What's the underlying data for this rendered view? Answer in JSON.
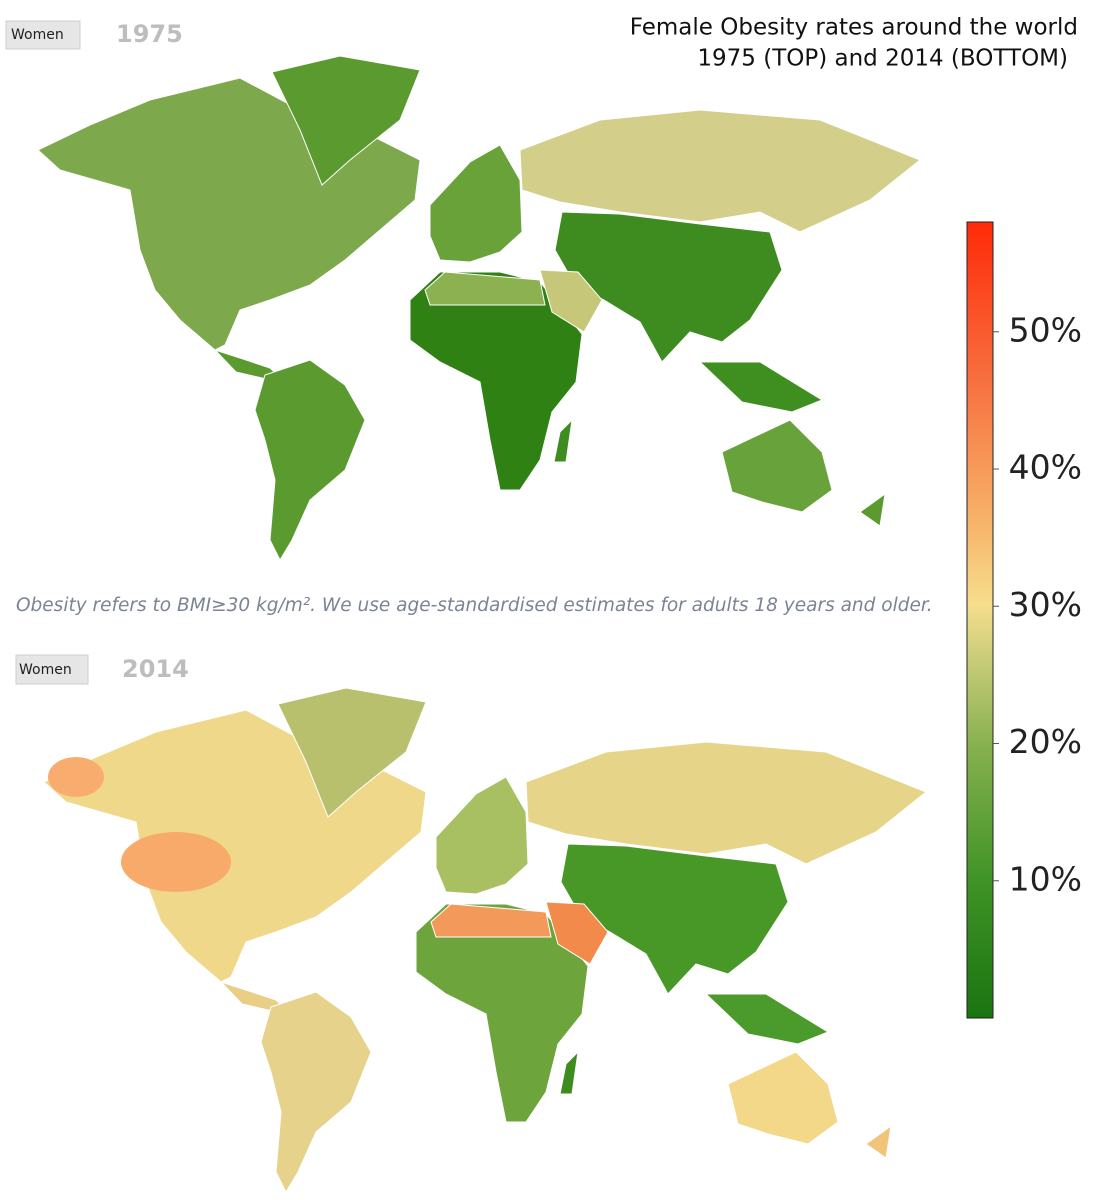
{
  "header": {
    "title_lines": [
      "Female Obesity rates around the world",
      "1975 (TOP) and 2014 (BOTTOM)"
    ]
  },
  "maps": [
    {
      "button": "Women",
      "year": "1975"
    },
    {
      "button": "Women",
      "year": "2014"
    }
  ],
  "note": "Obesity refers to BMI≥30 kg/m². We use age-standardised estimates for adults 18 years and older.",
  "legend": {
    "ylim": [
      0,
      58
    ],
    "yticks": [
      {
        "value": 10,
        "label": "10%"
      },
      {
        "value": 20,
        "label": "20%"
      },
      {
        "value": 30,
        "label": "30%"
      },
      {
        "value": 40,
        "label": "40%"
      },
      {
        "value": 50,
        "label": "50%"
      }
    ]
  }
}
